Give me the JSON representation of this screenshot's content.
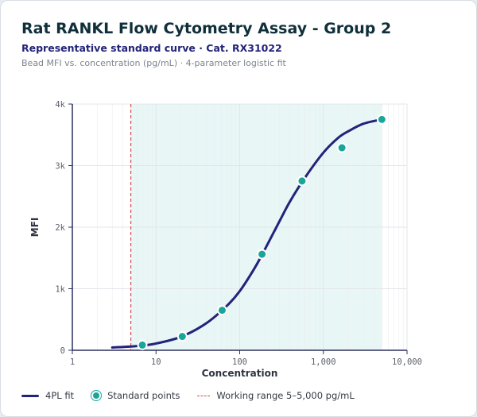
{
  "header": {
    "title": "Rat RANKL Flow Cytometry Assay - Group 2",
    "subtitle": "Representative standard curve · Cat. RX31022",
    "caption": "Bead MFI vs. concentration (pg/mL) · 4-parameter logistic fit"
  },
  "legend": {
    "fit_label": "4PL fit",
    "points_label": "Standard points",
    "range_label": "Working range 5–5,000 pg/mL"
  },
  "colors": {
    "curve": "#23237a",
    "points": "#1aa59b",
    "range_fill": "#e8f6f6",
    "lod_line": "#d24b55",
    "grid": "#eceef1",
    "axis": "#2d2f5e"
  },
  "chart_data": {
    "type": "scatter",
    "x_scale": "log",
    "xlabel": "Concentration",
    "ylabel": "MFI",
    "xlim": [
      1,
      10000
    ],
    "ylim": [
      0,
      4000
    ],
    "x_ticks": [
      1,
      10,
      100,
      1000,
      10000
    ],
    "x_tick_labels": [
      "1",
      "10",
      "100",
      "1,000",
      "10,000"
    ],
    "y_ticks": [
      0,
      1000,
      2000,
      3000,
      4000
    ],
    "y_tick_labels": [
      "0",
      "1k",
      "2k",
      "3k",
      "4k"
    ],
    "grid": true,
    "legend_position": "bottom",
    "working_range": [
      5,
      5000
    ],
    "series": [
      {
        "name": "Standard points",
        "x": [
          6.86,
          20.6,
          61.7,
          185,
          556,
          1667,
          5000
        ],
        "y": [
          85,
          225,
          650,
          1560,
          2750,
          3290,
          3750
        ]
      }
    ],
    "fit": {
      "name": "4PL fit",
      "model": "4PL",
      "x_range": [
        3,
        5000
      ],
      "x": [
        3,
        6,
        10,
        20,
        40,
        70,
        100,
        150,
        200,
        300,
        400,
        600,
        1000,
        1500,
        2000,
        3000,
        5000
      ],
      "y": [
        45,
        70,
        110,
        220,
        440,
        720,
        960,
        1330,
        1640,
        2100,
        2420,
        2800,
        3210,
        3450,
        3560,
        3680,
        3750
      ]
    }
  }
}
